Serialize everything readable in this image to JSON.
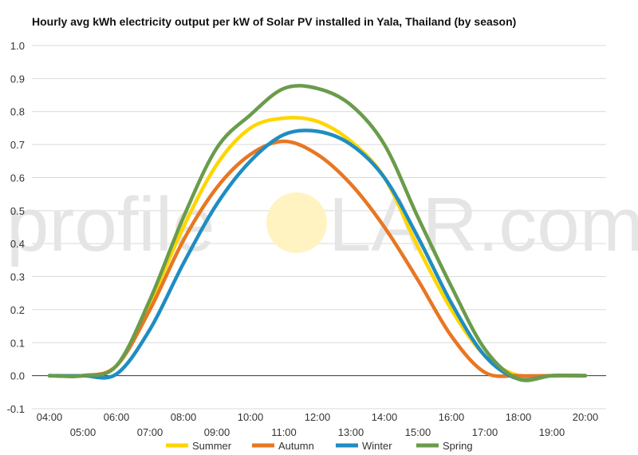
{
  "chart_data": {
    "type": "line",
    "title": "Hourly avg kWh electricity output per kW of Solar PV installed in Yala, Thailand (by season)",
    "xlabel": "",
    "ylabel": "",
    "x": [
      "04:00",
      "05:00",
      "06:00",
      "07:00",
      "08:00",
      "09:00",
      "10:00",
      "11:00",
      "12:00",
      "13:00",
      "14:00",
      "15:00",
      "16:00",
      "17:00",
      "18:00",
      "19:00",
      "20:00"
    ],
    "y_ticks": [
      "1.0",
      "0.9",
      "0.8",
      "0.7",
      "0.6",
      "0.5",
      "0.4",
      "0.3",
      "0.2",
      "0.1",
      "0.0",
      "-0.1"
    ],
    "ylim": [
      -0.1,
      1.0
    ],
    "grid": true,
    "legend_position": "bottom",
    "series": [
      {
        "name": "Summer",
        "color": "#FFD500",
        "values": [
          0,
          0,
          0.03,
          0.22,
          0.45,
          0.64,
          0.75,
          0.78,
          0.77,
          0.71,
          0.6,
          0.39,
          0.2,
          0.06,
          0,
          0,
          0
        ]
      },
      {
        "name": "Autumn",
        "color": "#E87722",
        "values": [
          0,
          0,
          0.03,
          0.2,
          0.41,
          0.57,
          0.67,
          0.71,
          0.67,
          0.58,
          0.45,
          0.29,
          0.12,
          0.01,
          0,
          0,
          0
        ]
      },
      {
        "name": "Winter",
        "color": "#1F8DC2",
        "values": [
          0,
          0,
          0.005,
          0.14,
          0.34,
          0.52,
          0.65,
          0.73,
          0.74,
          0.7,
          0.6,
          0.42,
          0.22,
          0.06,
          -0.01,
          0,
          0
        ]
      },
      {
        "name": "Spring",
        "color": "#6A9C4B",
        "values": [
          0,
          0,
          0.03,
          0.23,
          0.48,
          0.69,
          0.79,
          0.87,
          0.87,
          0.82,
          0.7,
          0.48,
          0.27,
          0.08,
          -0.01,
          0,
          0
        ]
      }
    ]
  },
  "watermark": {
    "left": "profile",
    "right": "LAR.com",
    "sun_color": "#FFF3C2"
  }
}
